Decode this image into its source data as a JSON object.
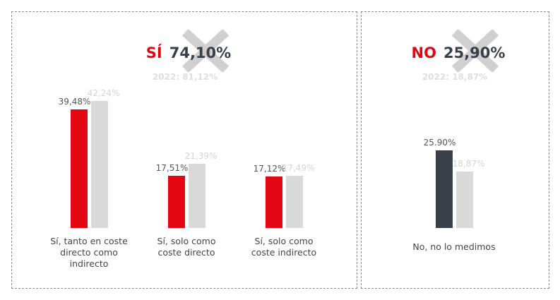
{
  "chart_data": [
    {
      "type": "bar",
      "title": "SÍ",
      "headline": "74,10%",
      "subtitle": "2022: 81,12%",
      "categories": [
        "Sí, tanto en coste directo como indirecto",
        "Sí, solo como coste directo",
        "Sí, solo como coste indirecto"
      ],
      "series": [
        {
          "color": "#e30613",
          "values": [
            39.48,
            17.51,
            17.12
          ],
          "value_labels": [
            "39,48%",
            "17,51%",
            "17,12%"
          ]
        },
        {
          "color": "#d9d9d9",
          "values": [
            42.24,
            21.39,
            17.49
          ],
          "value_labels": [
            "42,24%",
            "21,39%",
            "17,49%"
          ]
        }
      ]
    },
    {
      "type": "bar",
      "title": "NO",
      "headline": "25,90%",
      "subtitle": "2022: 18,87%",
      "categories": [
        "No, no lo medimos"
      ],
      "series": [
        {
          "color": "#3a4049",
          "values": [
            25.9
          ],
          "value_labels": [
            "25.90%"
          ]
        },
        {
          "color": "#d9d9d9",
          "values": [
            18.87
          ],
          "value_labels": [
            "18,87%"
          ]
        }
      ]
    }
  ]
}
